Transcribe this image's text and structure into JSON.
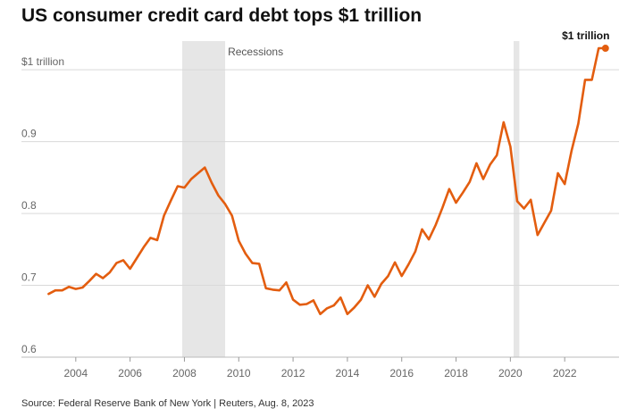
{
  "title": "US consumer credit card debt tops $1 trillion",
  "source": "Source: Federal Reserve Bank of New York | Reuters, Aug. 8, 2023",
  "chart_data": {
    "type": "line",
    "title": "US consumer credit card debt tops $1 trillion",
    "xlabel": "",
    "ylabel": "",
    "xlim": [
      2002.0,
      2024.0
    ],
    "ylim": [
      0.6,
      1.04
    ],
    "y_ticks": [
      {
        "value": 0.6,
        "label": "0.6"
      },
      {
        "value": 0.7,
        "label": "0.7"
      },
      {
        "value": 0.8,
        "label": "0.8"
      },
      {
        "value": 0.9,
        "label": "0.9"
      },
      {
        "value": 1.0,
        "label": "$1 trillion"
      }
    ],
    "x_ticks": [
      {
        "value": 2004,
        "label": "2004"
      },
      {
        "value": 2006,
        "label": "2006"
      },
      {
        "value": 2008,
        "label": "2008"
      },
      {
        "value": 2010,
        "label": "2010"
      },
      {
        "value": 2012,
        "label": "2012"
      },
      {
        "value": 2014,
        "label": "2014"
      },
      {
        "value": 2016,
        "label": "2016"
      },
      {
        "value": 2018,
        "label": "2018"
      },
      {
        "value": 2020,
        "label": "2020"
      },
      {
        "value": 2022,
        "label": "2022"
      }
    ],
    "grid": true,
    "recessions": [
      [
        2007.92,
        2009.5
      ],
      [
        2020.12,
        2020.33
      ]
    ],
    "recession_label": "Recessions",
    "end_label": "$1 trillion",
    "line_color": "#e35d0f",
    "recession_color": "#e6e6e6",
    "series": [
      {
        "x": [
          2003.0,
          2003.25,
          2003.5,
          2003.75,
          2004.0,
          2004.25,
          2004.5,
          2004.75,
          2005.0,
          2005.25,
          2005.5,
          2005.75,
          2006.0,
          2006.25,
          2006.5,
          2006.75,
          2007.0,
          2007.25,
          2007.5,
          2007.75,
          2008.0,
          2008.25,
          2008.5,
          2008.75,
          2009.0,
          2009.25,
          2009.5,
          2009.75,
          2010.0,
          2010.25,
          2010.5,
          2010.75,
          2011.0,
          2011.25,
          2011.5,
          2011.75,
          2012.0,
          2012.25,
          2012.5,
          2012.75,
          2013.0,
          2013.25,
          2013.5,
          2013.75,
          2014.0,
          2014.25,
          2014.5,
          2014.75,
          2015.0,
          2015.25,
          2015.5,
          2015.75,
          2016.0,
          2016.25,
          2016.5,
          2016.75,
          2017.0,
          2017.25,
          2017.5,
          2017.75,
          2018.0,
          2018.25,
          2018.5,
          2018.75,
          2019.0,
          2019.25,
          2019.5,
          2019.75,
          2020.0,
          2020.25,
          2020.5,
          2020.75,
          2021.0,
          2021.25,
          2021.5,
          2021.75,
          2022.0,
          2022.25,
          2022.5,
          2022.75,
          2023.0,
          2023.25,
          2023.5
        ],
        "y": [
          0.688,
          0.693,
          0.693,
          0.698,
          0.695,
          0.697,
          0.706,
          0.716,
          0.71,
          0.718,
          0.731,
          0.735,
          0.723,
          0.738,
          0.753,
          0.766,
          0.763,
          0.797,
          0.818,
          0.838,
          0.836,
          0.848,
          0.856,
          0.864,
          0.843,
          0.825,
          0.813,
          0.797,
          0.762,
          0.744,
          0.731,
          0.73,
          0.696,
          0.694,
          0.693,
          0.704,
          0.68,
          0.673,
          0.674,
          0.679,
          0.66,
          0.668,
          0.672,
          0.683,
          0.66,
          0.669,
          0.68,
          0.7,
          0.684,
          0.702,
          0.713,
          0.732,
          0.713,
          0.729,
          0.747,
          0.778,
          0.764,
          0.784,
          0.808,
          0.834,
          0.815,
          0.829,
          0.844,
          0.87,
          0.848,
          0.868,
          0.881,
          0.927,
          0.893,
          0.817,
          0.807,
          0.819,
          0.77,
          0.787,
          0.804,
          0.856,
          0.841,
          0.887,
          0.925,
          0.986,
          0.986,
          1.03,
          1.03
        ]
      }
    ]
  }
}
